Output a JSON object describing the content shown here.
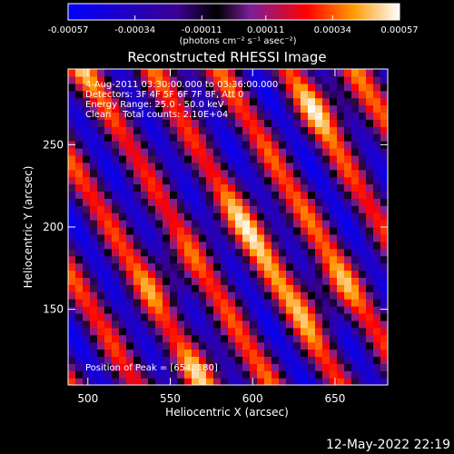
{
  "chart_data": {
    "type": "heatmap",
    "title": "Reconstructed RHESSI Image",
    "xlabel": "Heliocentric X (arcsec)",
    "ylabel": "Heliocentric Y (arcsec)",
    "xlim": [
      488,
      682
    ],
    "ylim": [
      104,
      296
    ],
    "x_ticks": [
      500,
      550,
      600,
      650
    ],
    "y_ticks": [
      150,
      200,
      250
    ],
    "x_tick_labels": [
      "500",
      "550",
      "600",
      "650"
    ],
    "y_tick_labels": [
      "150",
      "200",
      "250"
    ],
    "colorbar": {
      "range": [
        -0.00057,
        0.00057
      ],
      "ticks": [
        -0.00057,
        -0.00034,
        -0.00011,
        0.00011,
        0.00034,
        0.00057
      ],
      "tick_labels": [
        "-0.00057",
        "-0.00034",
        "-0.00011",
        "0.00011",
        "0.00034",
        "0.00057"
      ],
      "units": "(photons cm⁻² s⁻¹ asec⁻²)",
      "colormap": [
        "#0000ff",
        "#000000",
        "#7a1f9a",
        "#ff0000",
        "#ff9900",
        "#ffffff"
      ]
    },
    "annotations": [
      "4-Aug-2011 03:30:00.000 to 03:36:00.000",
      "Detectors: 3F 4F 5F 6F 7F 8F, Att 0",
      "Energy Range: 25.0 - 50.0 keV",
      "Clean    Total counts: 2.10E+04",
      "Position of Peak = [654, 180]"
    ],
    "stripe_ridges": [
      {
        "x": 488,
        "y": 292,
        "strength": 0.8
      },
      {
        "x": 560,
        "y": 296,
        "strength": 0.6
      },
      {
        "x": 650,
        "y": 275,
        "strength": 1.0
      },
      {
        "x": 600,
        "y": 200,
        "strength": 0.9
      },
      {
        "x": 640,
        "y": 160,
        "strength": 1.0
      },
      {
        "x": 572,
        "y": 110,
        "strength": 0.8
      },
      {
        "x": 545,
        "y": 170,
        "strength": 0.7
      }
    ]
  },
  "timestamp": "12-May-2022 22:19"
}
